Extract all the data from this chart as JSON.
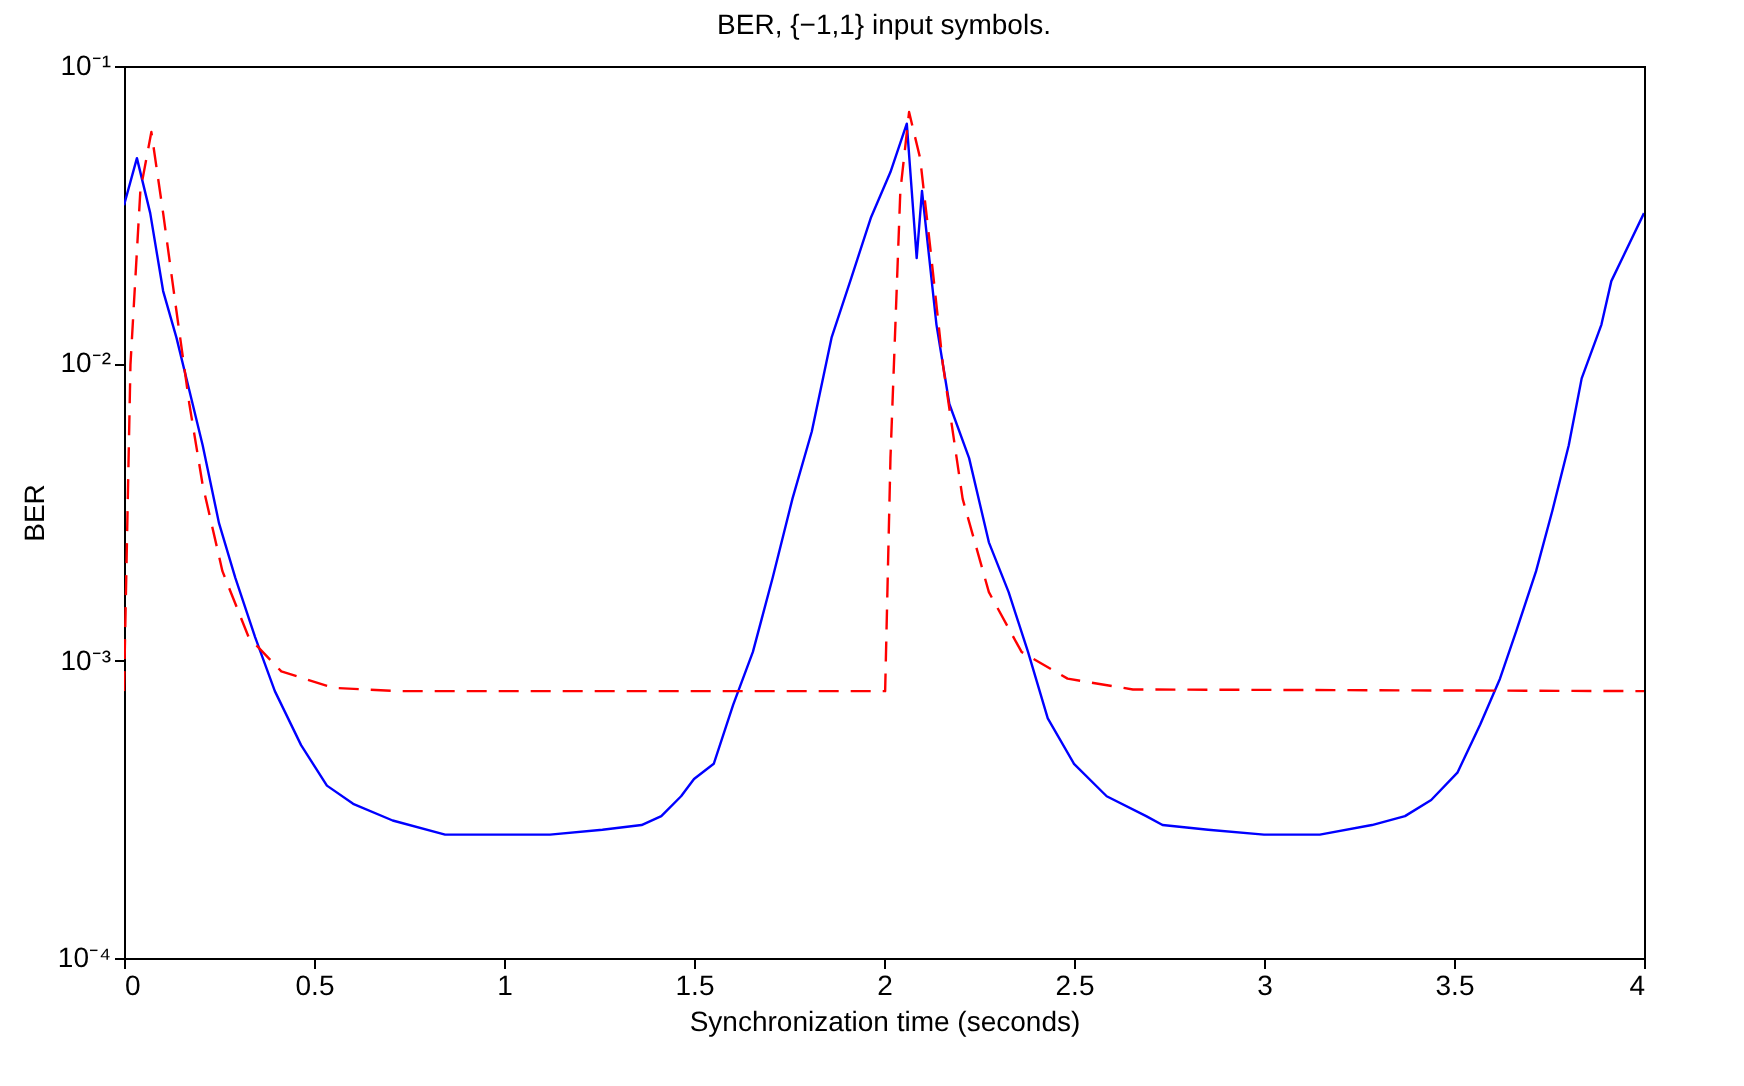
{
  "chart_data": {
    "type": "line",
    "title": "BER, {−1,1} input symbols.",
    "xlabel": "Synchronization time (seconds)",
    "ylabel": "BER",
    "log": "y",
    "grid": false,
    "marker": "none",
    "xlim": [
      0,
      4
    ],
    "xticks": [
      0,
      0.5,
      1,
      1.5,
      2,
      2.5,
      3,
      3.5,
      4
    ],
    "ylim": [
      0.0001,
      0.1
    ],
    "yticks": [
      {
        "value": 0.0001,
        "label": "10⁻⁴"
      },
      {
        "value": 0.001,
        "label": "10⁻³"
      },
      {
        "value": 0.01,
        "label": "10⁻²"
      },
      {
        "value": 0.1,
        "label": "10⁻¹"
      }
    ],
    "series": [
      {
        "color": "#0000ff",
        "line_style": "solid",
        "x": [
          0,
          0.034,
          0.069,
          0.103,
          0.138,
          0.172,
          0.207,
          0.25,
          0.293,
          0.345,
          0.397,
          0.466,
          0.534,
          0.603,
          0.707,
          0.845,
          0.983,
          1.121,
          1.259,
          1.362,
          1.414,
          1.466,
          1.5,
          1.552,
          1.603,
          1.655,
          1.707,
          1.759,
          1.81,
          1.862,
          1.914,
          1.966,
          2.017,
          2.06,
          2.086,
          2.1,
          2.138,
          2.172,
          2.224,
          2.276,
          2.328,
          2.379,
          2.431,
          2.5,
          2.586,
          2.69,
          2.733,
          2.853,
          3.0,
          3.147,
          3.284,
          3.371,
          3.44,
          3.509,
          3.569,
          3.621,
          3.664,
          3.716,
          3.759,
          3.802,
          3.836,
          3.888,
          3.914,
          4.0
        ],
        "values": [
          0.034,
          0.049,
          0.032,
          0.0175,
          0.0122,
          0.0081,
          0.0053,
          0.0029,
          0.0019,
          0.0012,
          0.00079,
          0.00052,
          0.00038,
          0.00033,
          0.00029,
          0.00026,
          0.00026,
          0.00026,
          0.00027,
          0.00028,
          0.0003,
          0.00035,
          0.0004,
          0.00045,
          0.00071,
          0.00107,
          0.0019,
          0.0035,
          0.0059,
          0.0122,
          0.0194,
          0.031,
          0.044,
          0.064,
          0.0226,
          0.038,
          0.0135,
          0.0073,
          0.0048,
          0.0025,
          0.0017,
          0.00107,
          0.00064,
          0.00045,
          0.00035,
          0.0003,
          0.00028,
          0.00027,
          0.00026,
          0.00026,
          0.00028,
          0.0003,
          0.00034,
          0.00042,
          0.00061,
          0.00087,
          0.00126,
          0.002,
          0.0032,
          0.0053,
          0.0089,
          0.0135,
          0.0189,
          0.032
        ]
      },
      {
        "color": "#ff0000",
        "line_style": "dashed",
        "x": [
          0,
          0.017,
          0.043,
          0.072,
          0.103,
          0.138,
          0.172,
          0.207,
          0.259,
          0.328,
          0.414,
          0.552,
          0.724,
          2.003,
          2.017,
          2.043,
          2.066,
          2.095,
          2.121,
          2.155,
          2.207,
          2.276,
          2.362,
          2.483,
          2.655,
          4.0
        ],
        "values": [
          0.00079,
          0.0099,
          0.038,
          0.06,
          0.032,
          0.015,
          0.0073,
          0.0039,
          0.002,
          0.0012,
          0.00092,
          0.00081,
          0.00079,
          0.00079,
          0.0048,
          0.038,
          0.07,
          0.049,
          0.025,
          0.0099,
          0.0035,
          0.0017,
          0.00107,
          0.00087,
          0.0008,
          0.00079
        ]
      }
    ]
  }
}
